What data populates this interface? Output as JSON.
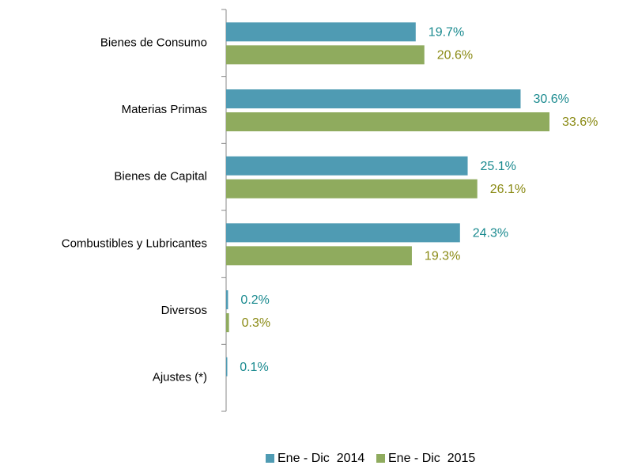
{
  "chart_data": {
    "type": "hbar",
    "categories": [
      "Bienes de Consumo",
      "Materias Primas",
      "Bienes de Capital",
      "Combustibles y Lubricantes",
      "Diversos",
      "Ajustes (*)"
    ],
    "series": [
      {
        "name": "Ene - Dic  2014",
        "color": "#4f9bb3",
        "label_color": "#1a8a8f",
        "values": [
          19.7,
          30.6,
          25.1,
          24.3,
          0.2,
          0.1
        ],
        "value_labels": [
          "19.7%",
          "30.6%",
          "25.1%",
          "24.3%",
          "0.2%",
          "0.1%"
        ]
      },
      {
        "name": "Ene - Dic  2015",
        "color": "#8fab5e",
        "label_color": "#8a8a14",
        "values": [
          20.6,
          33.6,
          26.1,
          19.3,
          0.3,
          null
        ],
        "value_labels": [
          "20.6%",
          "33.6%",
          "26.1%",
          "19.3%",
          "0.3%",
          null
        ]
      }
    ],
    "legend": "bottom"
  }
}
